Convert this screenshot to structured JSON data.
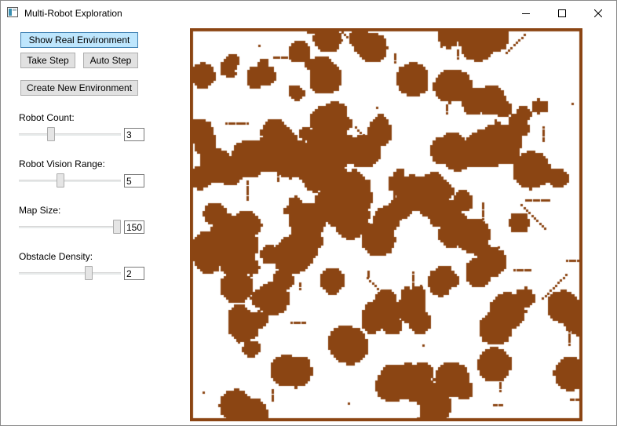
{
  "window": {
    "title": "Multi-Robot Exploration"
  },
  "controls": {
    "show_real_env": "Show Real Environment",
    "take_step": "Take Step",
    "auto_step": "Auto Step",
    "create_new_env": "Create New Environment"
  },
  "settings": [
    {
      "label": "Robot Count:",
      "value": "3",
      "slider_fraction": 0.3
    },
    {
      "label": "Robot Vision Range:",
      "value": "5",
      "slider_fraction": 0.4
    },
    {
      "label": "Map Size:",
      "value": "150",
      "slider_fraction": 1.0
    },
    {
      "label": "Obstacle Density:",
      "value": "2",
      "slider_fraction": 0.7
    }
  ],
  "map": {
    "obstacle_color": "#8b4513",
    "free_color": "#ffffff"
  }
}
